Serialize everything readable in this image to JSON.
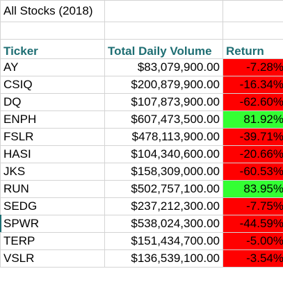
{
  "sheet": {
    "title": "All Stocks (2018)",
    "headers": {
      "ticker": "Ticker",
      "volume": "Total Daily Volume",
      "return": "Return"
    },
    "colors": {
      "header_text": "#1e6e73",
      "negative_fill": "#ff0000",
      "positive_fill": "#33ff33"
    },
    "rows": [
      {
        "ticker": "AY",
        "volume": "$83,079,900.00",
        "return": "-7.28%",
        "positive": false
      },
      {
        "ticker": "CSIQ",
        "volume": "$200,879,900.00",
        "return": "-16.34%",
        "positive": false
      },
      {
        "ticker": "DQ",
        "volume": "$107,873,900.00",
        "return": "-62.60%",
        "positive": false
      },
      {
        "ticker": "ENPH",
        "volume": "$607,473,500.00",
        "return": "81.92%",
        "positive": true
      },
      {
        "ticker": "FSLR",
        "volume": "$478,113,900.00",
        "return": "-39.71%",
        "positive": false
      },
      {
        "ticker": "HASI",
        "volume": "$104,340,600.00",
        "return": "-20.66%",
        "positive": false
      },
      {
        "ticker": "JKS",
        "volume": "$158,309,000.00",
        "return": "-60.53%",
        "positive": false
      },
      {
        "ticker": "RUN",
        "volume": "$502,757,100.00",
        "return": "83.95%",
        "positive": true
      },
      {
        "ticker": "SEDG",
        "volume": "$237,212,300.00",
        "return": "-7.75%",
        "positive": false
      },
      {
        "ticker": "SPWR",
        "volume": "$538,024,300.00",
        "return": "-44.59%",
        "positive": false
      },
      {
        "ticker": "TERP",
        "volume": "$151,434,700.00",
        "return": "-5.00%",
        "positive": false
      },
      {
        "ticker": "VSLR",
        "volume": "$136,539,100.00",
        "return": "-3.54%",
        "positive": false
      }
    ]
  }
}
